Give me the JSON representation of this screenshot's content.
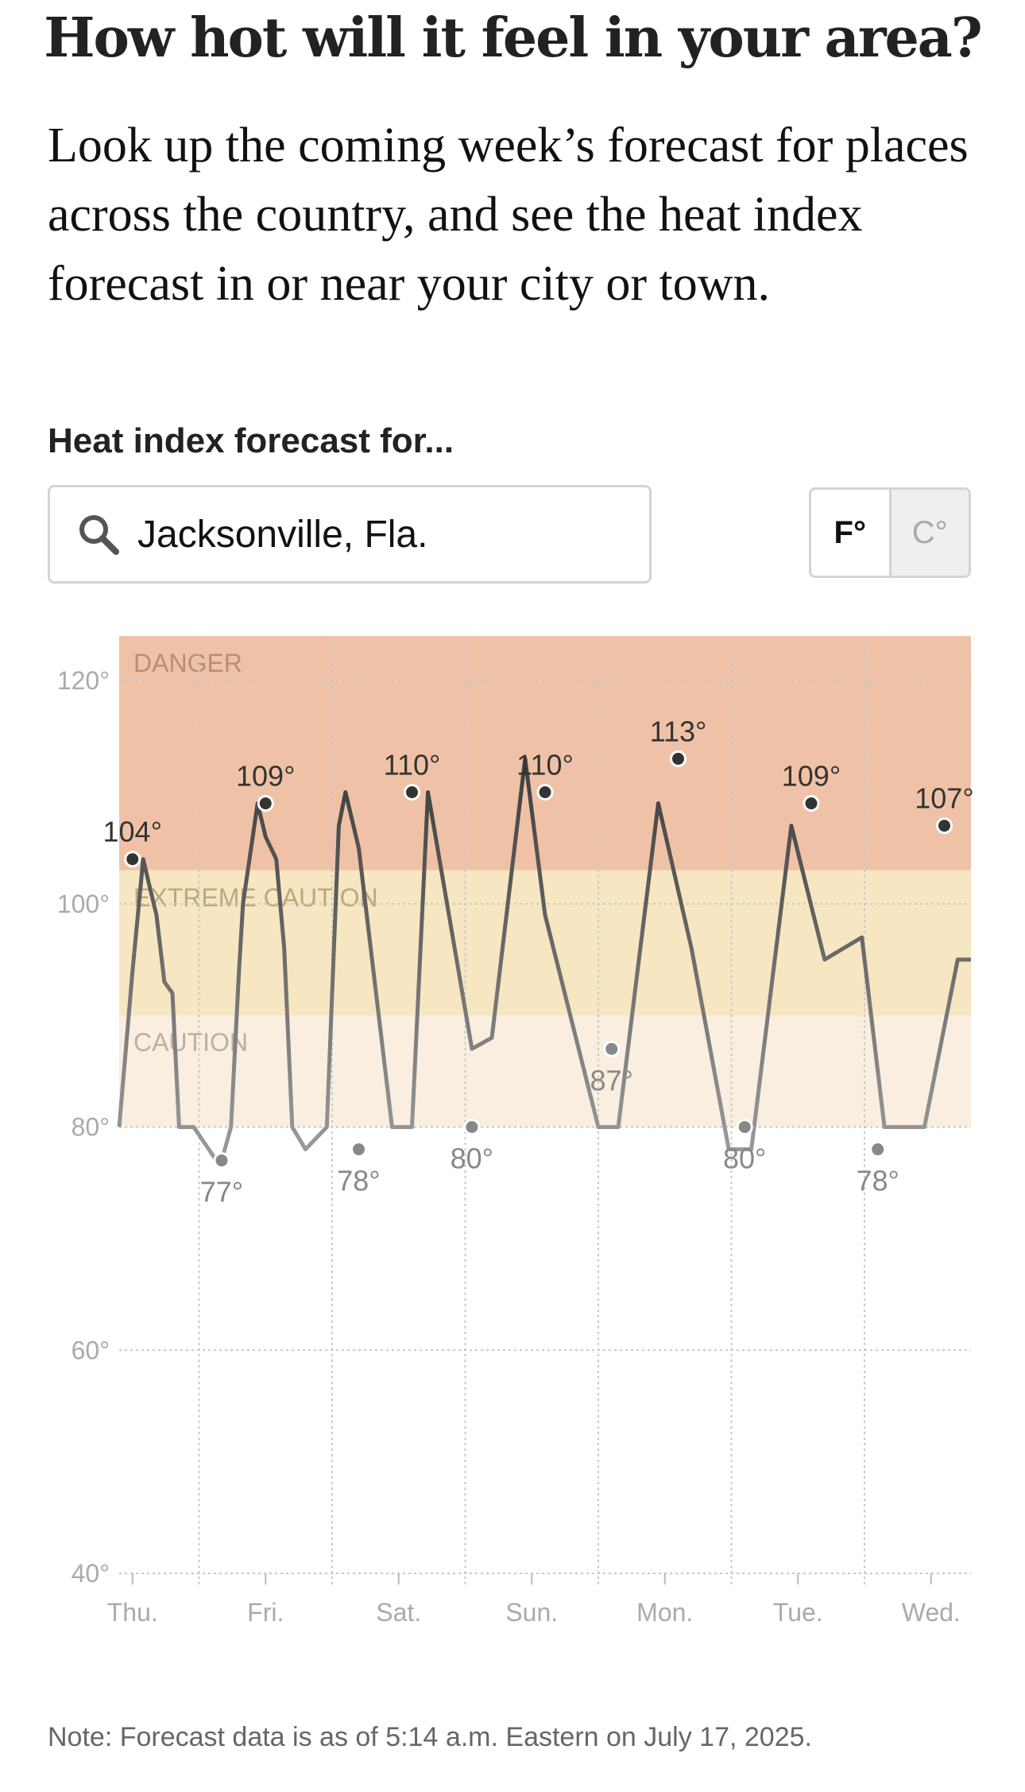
{
  "headline": "How hot will it feel in your area?",
  "intro": "Look up the coming week’s forecast for places across the country, and see the heat index forecast in or near your city or town.",
  "search": {
    "label": "Heat index forecast for...",
    "value": "Jacksonville, Fla.",
    "icon": "search-icon"
  },
  "units": {
    "fahrenheit": "F°",
    "celsius": "C°",
    "selected": "fahrenheit"
  },
  "note": "Note: Forecast data is as of 5:14 a.m. Eastern on July 17, 2025.",
  "chart_data": {
    "type": "line",
    "title": "",
    "xlabel": "",
    "ylabel": "",
    "ylim": [
      40,
      124
    ],
    "yticks": [
      40,
      60,
      80,
      100,
      120
    ],
    "ytick_labels": [
      "40°",
      "60°",
      "80°",
      "100°",
      "120°"
    ],
    "xlim": [
      -0.1,
      6.3
    ],
    "xticks": [
      0,
      1,
      2,
      3,
      4,
      5,
      6
    ],
    "categories": [
      "Thu.",
      "Fri.",
      "Sat.",
      "Sun.",
      "Mon.",
      "Tue.",
      "Wed."
    ],
    "grid": true,
    "bands": [
      {
        "label": "DANGER",
        "from": 103,
        "to": 124,
        "color": "#efc2a7",
        "text_color": "#b88e75"
      },
      {
        "label": "EXTREME CAUTION",
        "from": 90,
        "to": 103,
        "color": "#f6e6c1",
        "text_color": "#bba97e"
      },
      {
        "label": "CAUTION",
        "from": 80,
        "to": 90,
        "color": "#f9eedf",
        "text_color": "#bdb0a0"
      }
    ],
    "series": [
      {
        "x": [
          -0.1,
          0.0,
          0.08,
          0.12,
          0.18,
          0.24,
          0.3,
          0.35,
          0.46,
          0.63,
          0.67,
          0.74,
          0.8,
          0.83,
          0.94,
          1.0,
          1.08,
          1.14,
          1.2,
          1.3,
          1.46,
          1.55,
          1.6,
          1.7,
          1.95,
          2.1,
          2.22,
          2.55,
          2.7,
          2.95,
          3.1,
          3.5,
          3.65,
          3.95,
          4.2,
          4.48,
          4.65,
          4.95,
          5.2,
          5.48,
          5.65,
          5.95,
          6.2,
          6.3
        ],
        "y": [
          80,
          94,
          104,
          102,
          99,
          93,
          92,
          80,
          80,
          77,
          77,
          80,
          94,
          100,
          109,
          106,
          104,
          96,
          80,
          78,
          80,
          107,
          110,
          105,
          80,
          80,
          110,
          87,
          88,
          113,
          99,
          80,
          80,
          109,
          96,
          78,
          78,
          107,
          95,
          97,
          80,
          80,
          95,
          95
        ]
      }
    ],
    "annotations": [
      {
        "x": 0.0,
        "y": 104,
        "label": "104°",
        "kind": "high"
      },
      {
        "x": 0.67,
        "y": 77,
        "label": "77°",
        "kind": "low"
      },
      {
        "x": 1.0,
        "y": 109,
        "label": "109°",
        "kind": "high"
      },
      {
        "x": 1.7,
        "y": 78,
        "label": "78°",
        "kind": "low"
      },
      {
        "x": 2.1,
        "y": 110,
        "label": "110°",
        "kind": "high"
      },
      {
        "x": 2.55,
        "y": 80,
        "label": "80°",
        "kind": "low"
      },
      {
        "x": 3.1,
        "y": 110,
        "label": "110°",
        "kind": "high"
      },
      {
        "x": 3.6,
        "y": 87,
        "label": "87°",
        "kind": "low"
      },
      {
        "x": 4.1,
        "y": 113,
        "label": "113°",
        "kind": "high"
      },
      {
        "x": 4.6,
        "y": 80,
        "label": "80°",
        "kind": "low"
      },
      {
        "x": 5.1,
        "y": 109,
        "label": "109°",
        "kind": "high"
      },
      {
        "x": 5.6,
        "y": 78,
        "label": "78°",
        "kind": "low"
      },
      {
        "x": 6.1,
        "y": 107,
        "label": "107°",
        "kind": "high"
      }
    ],
    "colors": {
      "high": "#333333",
      "low": "#888888",
      "line_dark": "#444444",
      "line_light": "#999999"
    }
  }
}
